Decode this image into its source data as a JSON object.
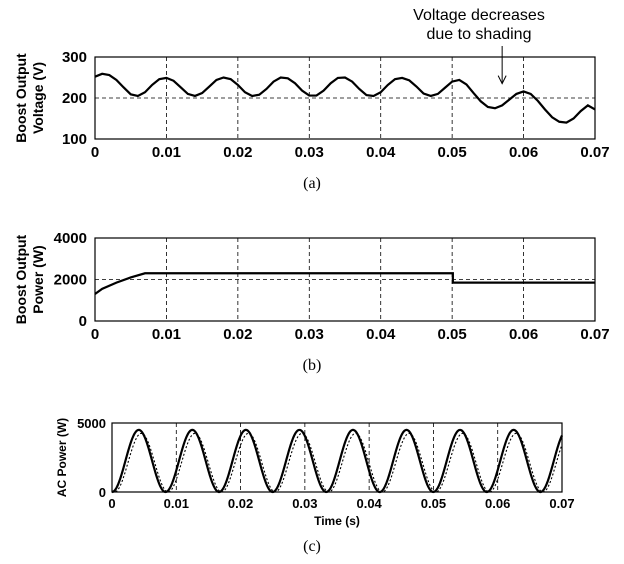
{
  "chart_data": [
    {
      "type": "line",
      "ylabel": [
        "Boost Output",
        "Voltage (V)"
      ],
      "xlabel": "",
      "xlim": [
        0,
        0.07
      ],
      "ylim": [
        100,
        300
      ],
      "xticks": [
        "0",
        "0.01",
        "0.02",
        "0.03",
        "0.04",
        "0.05",
        "0.06",
        "0.07"
      ],
      "yticks": [
        "100",
        "200",
        "300"
      ],
      "grid": true,
      "caption": "(a)",
      "annotation": [
        "Voltage decreases",
        "due to shading"
      ],
      "annotation_target": {
        "x": 0.057,
        "y": 240
      },
      "series": [
        {
          "style": "solid",
          "x": [
            0,
            0.001,
            0.002,
            0.003,
            0.004,
            0.005,
            0.006,
            0.007,
            0.008,
            0.009,
            0.01,
            0.011,
            0.012,
            0.013,
            0.014,
            0.015,
            0.016,
            0.017,
            0.018,
            0.019,
            0.02,
            0.021,
            0.022,
            0.023,
            0.024,
            0.025,
            0.026,
            0.027,
            0.028,
            0.029,
            0.03,
            0.031,
            0.032,
            0.033,
            0.034,
            0.035,
            0.036,
            0.037,
            0.038,
            0.039,
            0.04,
            0.041,
            0.042,
            0.043,
            0.044,
            0.045,
            0.046,
            0.047,
            0.048,
            0.049,
            0.05,
            0.051,
            0.052,
            0.053,
            0.054,
            0.055,
            0.056,
            0.057,
            0.058,
            0.059,
            0.06,
            0.061,
            0.062,
            0.063,
            0.064,
            0.065,
            0.066,
            0.067,
            0.068,
            0.069,
            0.07
          ],
          "values": [
            252,
            259,
            256,
            244,
            226,
            209,
            205,
            214,
            232,
            246,
            249,
            242,
            226,
            210,
            205,
            212,
            228,
            244,
            250,
            246,
            232,
            214,
            205,
            208,
            222,
            240,
            250,
            248,
            236,
            218,
            206,
            206,
            218,
            236,
            249,
            250,
            240,
            222,
            207,
            205,
            214,
            232,
            246,
            249,
            243,
            228,
            211,
            205,
            210,
            225,
            240,
            244,
            233,
            212,
            192,
            178,
            175,
            182,
            196,
            210,
            216,
            210,
            193,
            172,
            153,
            142,
            140,
            150,
            168,
            182,
            172
          ]
        }
      ]
    },
    {
      "type": "line",
      "ylabel": [
        "Boost Output",
        "Power (W)"
      ],
      "xlabel": "",
      "xlim": [
        0,
        0.07
      ],
      "ylim": [
        0,
        4000
      ],
      "xticks": [
        "0",
        "0.01",
        "0.02",
        "0.03",
        "0.04",
        "0.05",
        "0.06",
        "0.07"
      ],
      "yticks": [
        "0",
        "2000",
        "4000"
      ],
      "grid": true,
      "caption": "(b)",
      "series": [
        {
          "style": "solid",
          "x": [
            0,
            0.001,
            0.003,
            0.005,
            0.007,
            0.0501,
            0.0501,
            0.07
          ],
          "values": [
            1300,
            1550,
            1850,
            2100,
            2300,
            2300,
            1850,
            1850
          ]
        }
      ]
    },
    {
      "type": "line",
      "ylabel": [
        "AC Power (W)"
      ],
      "xlabel": "Time (s)",
      "xlim": [
        0,
        0.07
      ],
      "ylim": [
        0,
        5000
      ],
      "xticks": [
        "0",
        "0.01",
        "0.02",
        "0.03",
        "0.04",
        "0.05",
        "0.06",
        "0.07"
      ],
      "yticks": [
        "0",
        "5000"
      ],
      "grid": true,
      "caption": "(c)",
      "oscillation": {
        "period": 0.00833,
        "peak_solid": 4500,
        "peak_dotted": 4250,
        "dotted_lag": 0.0004
      },
      "series": [
        {
          "style": "solid"
        },
        {
          "style": "dotted"
        }
      ]
    }
  ]
}
